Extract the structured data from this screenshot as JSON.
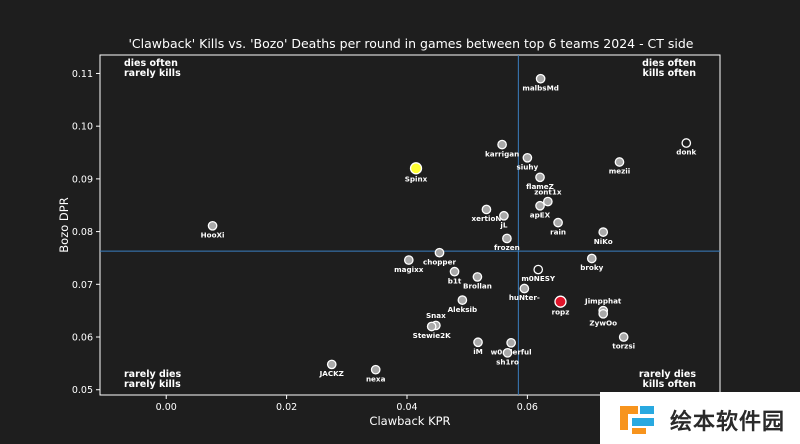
{
  "chart_data": {
    "type": "scatter",
    "title": "'Clawback' Kills vs. 'Bozo' Deaths per round in games between top 6 teams 2024 - CT side",
    "xlabel": "Clawback KPR",
    "ylabel": "Bozo DPR",
    "xlim": [
      -0.011,
      0.092
    ],
    "ylim": [
      0.049,
      0.1135
    ],
    "xticks": [
      "0.00",
      "0.02",
      "0.04",
      "0.06",
      "0.08"
    ],
    "xtick_values": [
      0.0,
      0.02,
      0.04,
      0.06,
      0.08
    ],
    "yticks": [
      "0.05",
      "0.06",
      "0.07",
      "0.08",
      "0.09",
      "0.10",
      "0.11"
    ],
    "ytick_values": [
      0.05,
      0.06,
      0.07,
      0.08,
      0.09,
      0.1,
      0.11
    ],
    "reference_lines": {
      "x": 0.0585,
      "y": 0.0763,
      "color": "#3a7fc1"
    },
    "grid": false,
    "quadrant_labels": {
      "top_left": [
        "dies often",
        "rarely kills"
      ],
      "top_right": [
        "dies often",
        "kills often"
      ],
      "bottom_left": [
        "rarely dies",
        "rarely kills"
      ],
      "bottom_right": [
        "rarely dies",
        "kills often"
      ]
    },
    "points": [
      {
        "name": "malbsMd",
        "x": 0.0622,
        "y": 0.109,
        "fill": "#a9a9a9",
        "label_pos": "below"
      },
      {
        "name": "donk",
        "x": 0.0864,
        "y": 0.0968,
        "fill": "#1e1e1e",
        "label_pos": "below"
      },
      {
        "name": "karrigan",
        "x": 0.0558,
        "y": 0.0965,
        "fill": "#a9a9a9",
        "label_pos": "below"
      },
      {
        "name": "siuhy",
        "x": 0.06,
        "y": 0.094,
        "fill": "#a9a9a9",
        "label_pos": "below"
      },
      {
        "name": "mezii",
        "x": 0.0753,
        "y": 0.0932,
        "fill": "#a9a9a9",
        "label_pos": "below"
      },
      {
        "name": "Spinx",
        "x": 0.0415,
        "y": 0.092,
        "fill": "#ffff33",
        "size": "large",
        "label_pos": "below"
      },
      {
        "name": "flameZ",
        "x": 0.0621,
        "y": 0.0903,
        "fill": "#a9a9a9",
        "label_pos": "below"
      },
      {
        "name": "zont1x",
        "x": 0.0634,
        "y": 0.0857,
        "fill": "#a9a9a9",
        "label_pos": "above"
      },
      {
        "name": "apEX",
        "x": 0.0621,
        "y": 0.0849,
        "fill": "#a9a9a9",
        "label_pos": "below"
      },
      {
        "name": "xertioN",
        "x": 0.0532,
        "y": 0.0842,
        "fill": "#a9a9a9",
        "label_pos": "below"
      },
      {
        "name": "jL",
        "x": 0.0561,
        "y": 0.083,
        "fill": "#a9a9a9",
        "label_pos": "below"
      },
      {
        "name": "rain",
        "x": 0.0651,
        "y": 0.0817,
        "fill": "#a9a9a9",
        "label_pos": "below"
      },
      {
        "name": "HooXi",
        "x": 0.0077,
        "y": 0.0811,
        "fill": "#a9a9a9",
        "label_pos": "below"
      },
      {
        "name": "NiKo",
        "x": 0.0726,
        "y": 0.0799,
        "fill": "#a9a9a9",
        "label_pos": "below"
      },
      {
        "name": "frozen",
        "x": 0.0566,
        "y": 0.0787,
        "fill": "#a9a9a9",
        "label_pos": "below"
      },
      {
        "name": "chopper",
        "x": 0.0454,
        "y": 0.076,
        "fill": "#a9a9a9",
        "label_pos": "below"
      },
      {
        "name": "magixx",
        "x": 0.0403,
        "y": 0.0746,
        "fill": "#a9a9a9",
        "label_pos": "below"
      },
      {
        "name": "broky",
        "x": 0.0707,
        "y": 0.0749,
        "fill": "#a9a9a9",
        "label_pos": "below"
      },
      {
        "name": "m0NESY",
        "x": 0.0618,
        "y": 0.0728,
        "fill": "#1e1e1e",
        "label_pos": "below"
      },
      {
        "name": "b1t",
        "x": 0.0479,
        "y": 0.0724,
        "fill": "#a9a9a9",
        "label_pos": "below"
      },
      {
        "name": "Brollan",
        "x": 0.0517,
        "y": 0.0714,
        "fill": "#a9a9a9",
        "label_pos": "below"
      },
      {
        "name": "huNter-",
        "x": 0.0595,
        "y": 0.0692,
        "fill": "#a9a9a9",
        "label_pos": "below"
      },
      {
        "name": "ropz",
        "x": 0.0655,
        "y": 0.0667,
        "fill": "#e0142a",
        "size": "large",
        "label_pos": "below"
      },
      {
        "name": "Jimpphat",
        "x": 0.0726,
        "y": 0.065,
        "fill": "#a9a9a9",
        "label_pos": "above"
      },
      {
        "name": "Aleksib",
        "x": 0.0492,
        "y": 0.067,
        "fill": "#a9a9a9",
        "label_pos": "below"
      },
      {
        "name": "ZywOo",
        "x": 0.0726,
        "y": 0.0644,
        "fill": "#a9a9a9",
        "label_pos": "below"
      },
      {
        "name": "Snax",
        "x": 0.0448,
        "y": 0.0622,
        "fill": "#a9a9a9",
        "label_pos": "above"
      },
      {
        "name": "Stewie2K",
        "x": 0.0441,
        "y": 0.062,
        "fill": "#a9a9a9",
        "label_pos": "below"
      },
      {
        "name": "torzsi",
        "x": 0.076,
        "y": 0.06,
        "fill": "#a9a9a9",
        "label_pos": "below"
      },
      {
        "name": "iM",
        "x": 0.0518,
        "y": 0.059,
        "fill": "#a9a9a9",
        "label_pos": "below"
      },
      {
        "name": "w0nderful",
        "x": 0.0573,
        "y": 0.0589,
        "fill": "#a9a9a9",
        "label_pos": "below"
      },
      {
        "name": "sh1ro",
        "x": 0.0567,
        "y": 0.057,
        "fill": "#a9a9a9",
        "label_pos": "below"
      },
      {
        "name": "JACKZ",
        "x": 0.0275,
        "y": 0.0548,
        "fill": "#a9a9a9",
        "label_pos": "below"
      },
      {
        "name": "nexa",
        "x": 0.0348,
        "y": 0.0538,
        "fill": "#a9a9a9",
        "label_pos": "below"
      }
    ],
    "colors": {
      "background": "#1e1e1e",
      "highlight_yellow": "#ffff33",
      "highlight_red": "#e0142a",
      "default_point": "#a9a9a9"
    }
  },
  "watermark": {
    "text": "绘本软件园",
    "icon": "watermark-logo-icon",
    "colors": [
      "#f7941d",
      "#29a9e0"
    ]
  }
}
